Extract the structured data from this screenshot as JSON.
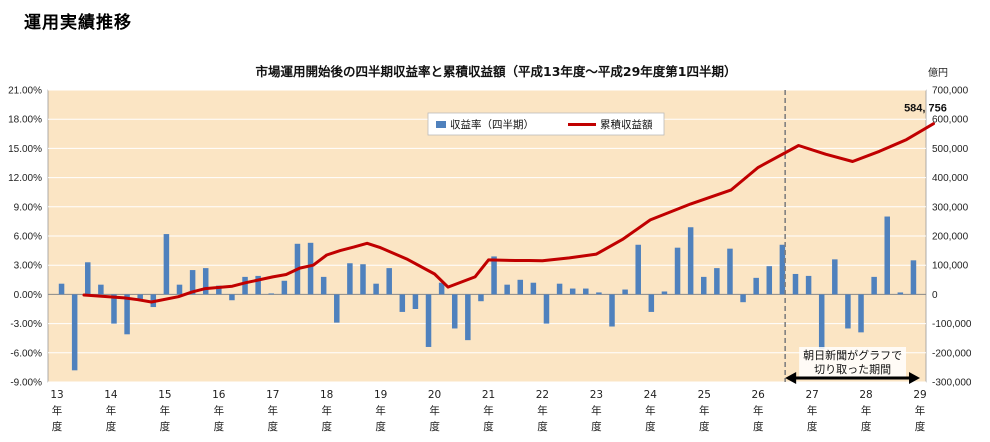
{
  "page": {
    "title": "運用実績推移"
  },
  "colors": {
    "plot_bg": "#fbe5c4",
    "bar": "#4f81bd",
    "line": "#c00000",
    "grid": "#ffffff",
    "dashed": "#808080"
  },
  "chart_data": {
    "type": "bar+line",
    "title": "市場運用開始後の四半期収益率と累積収益額（平成13年度～平成29年度第1四半期）",
    "y2_unit": "億円",
    "y1_ticks": [
      "21.00%",
      "18.00%",
      "15.00%",
      "12.00%",
      "9.00%",
      "6.00%",
      "3.00%",
      "0.00%",
      "-3.00%",
      "-6.00%",
      "-9.00%"
    ],
    "y2_ticks": [
      "700,000",
      "600,000",
      "500,000",
      "400,000",
      "300,000",
      "200,000",
      "100,000",
      "0",
      "-100,000",
      "-200,000",
      "-300,000"
    ],
    "y1lim": [
      -9,
      21
    ],
    "y2lim": [
      -300000,
      700000
    ],
    "fiscal_years": [
      "13",
      "14",
      "15",
      "16",
      "17",
      "18",
      "19",
      "20",
      "21",
      "22",
      "23",
      "24",
      "25",
      "26",
      "27",
      "28",
      "29"
    ],
    "year_suffix": [
      "年",
      "度"
    ],
    "legend": [
      {
        "name": "収益率（四半期）",
        "kind": "bar"
      },
      {
        "name": "累積収益額",
        "kind": "line"
      }
    ],
    "series_quarterly_return_pct": [
      1.1,
      -7.8,
      3.3,
      1.0,
      -3.0,
      -4.1,
      -0.5,
      -1.3,
      6.2,
      1.0,
      2.5,
      2.7,
      0.9,
      -0.6,
      1.8,
      1.9,
      0.1,
      1.4,
      5.2,
      5.3,
      1.8,
      -2.9,
      3.2,
      3.1,
      1.1,
      2.7,
      -1.8,
      -1.5,
      -5.4,
      1.2,
      -3.5,
      -4.7,
      -0.7,
      3.9,
      1.0,
      1.5,
      1.2,
      -3.0,
      1.1,
      0.6,
      0.6,
      0.2,
      -3.3,
      0.5,
      5.1,
      -1.8,
      0.3,
      4.8,
      6.9,
      1.8,
      2.7,
      4.7,
      -0.8,
      1.7,
      2.9,
      5.1,
      2.1,
      1.9,
      -5.6,
      3.6,
      -3.5,
      -3.9,
      1.8,
      8.0,
      0.2,
      3.5
    ],
    "series_cumulative_jpy100m": [
      -2000,
      -12000,
      -18000,
      -26000,
      -8000,
      8000,
      20000,
      28000,
      40000,
      60000,
      68000,
      90000,
      100000,
      135000,
      150000,
      162000,
      175000,
      160000,
      120000,
      70000,
      25000,
      60000,
      118000,
      116000,
      116000,
      115000,
      125000,
      138000,
      190000,
      255000,
      310000,
      358000,
      435000,
      510000,
      480000,
      455000,
      490000,
      530000,
      584756
    ],
    "cumulative_x_fy": [
      13.5,
      14.25,
      14.5,
      14.75,
      15.25,
      15.5,
      15.75,
      16.25,
      16.5,
      17.0,
      17.25,
      17.5,
      17.75,
      18.0,
      18.25,
      18.5,
      18.75,
      19.0,
      19.5,
      20.0,
      20.25,
      20.75,
      21.0,
      21.5,
      21.75,
      22.0,
      22.5,
      23.0,
      23.5,
      24.0,
      24.75,
      25.5,
      26.0,
      26.75,
      27.25,
      27.75,
      28.25,
      28.75,
      29.25
    ],
    "data_label": "584, 756",
    "dashed_divider_fy": 26.5,
    "annotation": {
      "line1": "朝日新聞がグラフで",
      "line2": "切り取った期間",
      "from_fy": 26.5,
      "to_fy": 29.0
    },
    "grid": true
  }
}
